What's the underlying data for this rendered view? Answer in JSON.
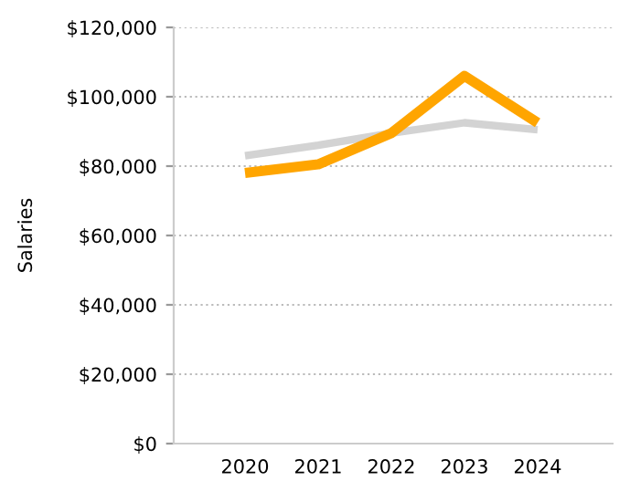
{
  "chart_data": {
    "type": "line",
    "ylabel": "Salaries",
    "categories": [
      "2020",
      "2021",
      "2022",
      "2023",
      "2024"
    ],
    "series": [
      {
        "color": "#d3d3d3",
        "values": [
          83000,
          86000,
          89500,
          92500,
          90500
        ]
      },
      {
        "color": "#ffa500",
        "values": [
          78000,
          80500,
          89500,
          106000,
          92500
        ]
      }
    ],
    "ylim": [
      0,
      120000
    ],
    "yticks": [
      {
        "value": 0,
        "label": "$0"
      },
      {
        "value": 20000,
        "label": "$20,000"
      },
      {
        "value": 40000,
        "label": "$40,000"
      },
      {
        "value": 60000,
        "label": "$60,000"
      },
      {
        "value": 80000,
        "label": "$80,000"
      },
      {
        "value": 100000,
        "label": "$100,000"
      },
      {
        "value": 120000,
        "label": "$120,000"
      }
    ],
    "grid": "y",
    "legend": false,
    "marker": "none",
    "line_style": "solid"
  }
}
